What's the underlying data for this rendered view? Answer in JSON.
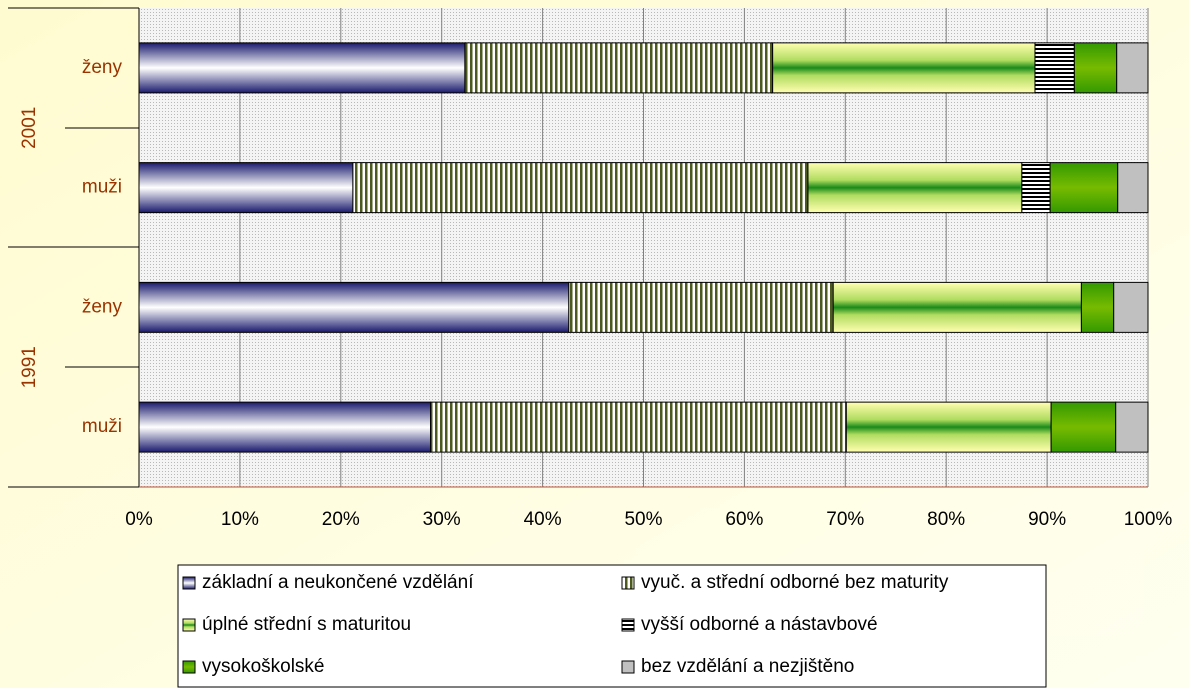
{
  "chart_data": {
    "type": "stacked-barh",
    "categories": [
      "ženy",
      "muži",
      "ženy",
      "muži"
    ],
    "category_groups": [
      "2001",
      "1991"
    ],
    "series": [
      {
        "name": "základní a neukončené vzdělání",
        "color": "#1a1a6e",
        "pattern": "blue-gradient",
        "values": [
          32.3,
          21.2,
          42.6,
          28.9
        ]
      },
      {
        "name": "vyuč. a střední odborné bez maturity",
        "color": "#4d5a1e",
        "pattern": "vertical-stripes",
        "values": [
          30.5,
          45.1,
          26.2,
          41.2
        ]
      },
      {
        "name": "úplné střední s maturitou",
        "color": "#1a8a1a",
        "pattern": "green-band",
        "values": [
          26.0,
          21.2,
          24.6,
          20.3
        ]
      },
      {
        "name": "vyšší odborné a nástavbové",
        "color": "#000000",
        "pattern": "horizontal-stripes",
        "values": [
          3.9,
          2.8,
          0,
          0
        ]
      },
      {
        "name": "vysokoškolské",
        "color": "#55a000",
        "pattern": "green-gradient",
        "values": [
          4.2,
          6.7,
          3.2,
          6.4
        ]
      },
      {
        "name": "bez vzdělání a nezjištěno",
        "color": "#c0c0c0",
        "pattern": "solid",
        "values": [
          3.1,
          3.0,
          3.4,
          3.2
        ]
      }
    ],
    "xlim": [
      0,
      100
    ],
    "xticks": [
      {
        "value": 0,
        "label": "0%"
      },
      {
        "value": 10,
        "label": "10%"
      },
      {
        "value": 20,
        "label": "20%"
      },
      {
        "value": 30,
        "label": "30%"
      },
      {
        "value": 40,
        "label": "40%"
      },
      {
        "value": 50,
        "label": "50%"
      },
      {
        "value": 60,
        "label": "60%"
      },
      {
        "value": 70,
        "label": "70%"
      },
      {
        "value": 80,
        "label": "80%"
      },
      {
        "value": 90,
        "label": "90%"
      },
      {
        "value": 100,
        "label": "100%"
      }
    ],
    "grid": true,
    "legend": "bottom"
  }
}
